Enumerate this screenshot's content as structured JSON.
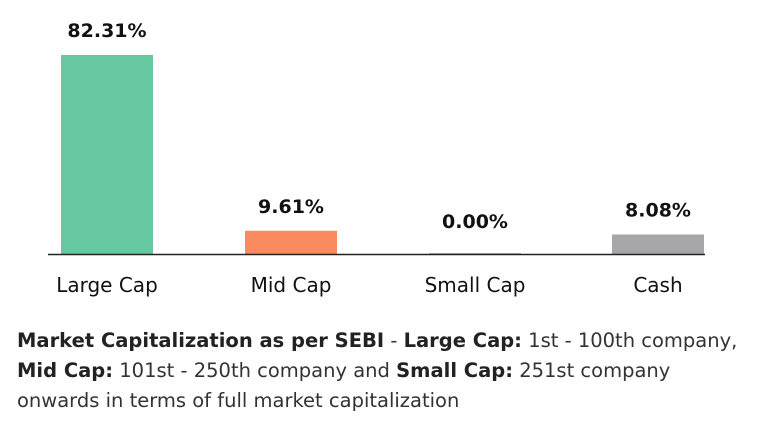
{
  "chart_data": {
    "type": "bar",
    "categories": [
      "Large Cap",
      "Mid Cap",
      "Small Cap",
      "Cash"
    ],
    "values": [
      82.31,
      9.61,
      0.0,
      8.08
    ],
    "value_labels": [
      "82.31%",
      "9.61%",
      "0.00%",
      "8.08%"
    ],
    "colors": [
      "#66c8a0",
      "#f98b5f",
      "#bbbbbb",
      "#a7a7a9"
    ],
    "ylim": [
      0,
      82.31
    ],
    "grid": false,
    "axis_color": "#222222"
  },
  "footnote": {
    "b1": "Market Capitalization as per SEBI",
    "t1": " - ",
    "b2": "Large Cap:",
    "t2": " 1st - 100th company, ",
    "b3": "Mid Cap:",
    "t3": " 101st - 250th company and ",
    "b4": "Small Cap:",
    "t4": " 251st company onwards in terms of full market capitalization"
  }
}
